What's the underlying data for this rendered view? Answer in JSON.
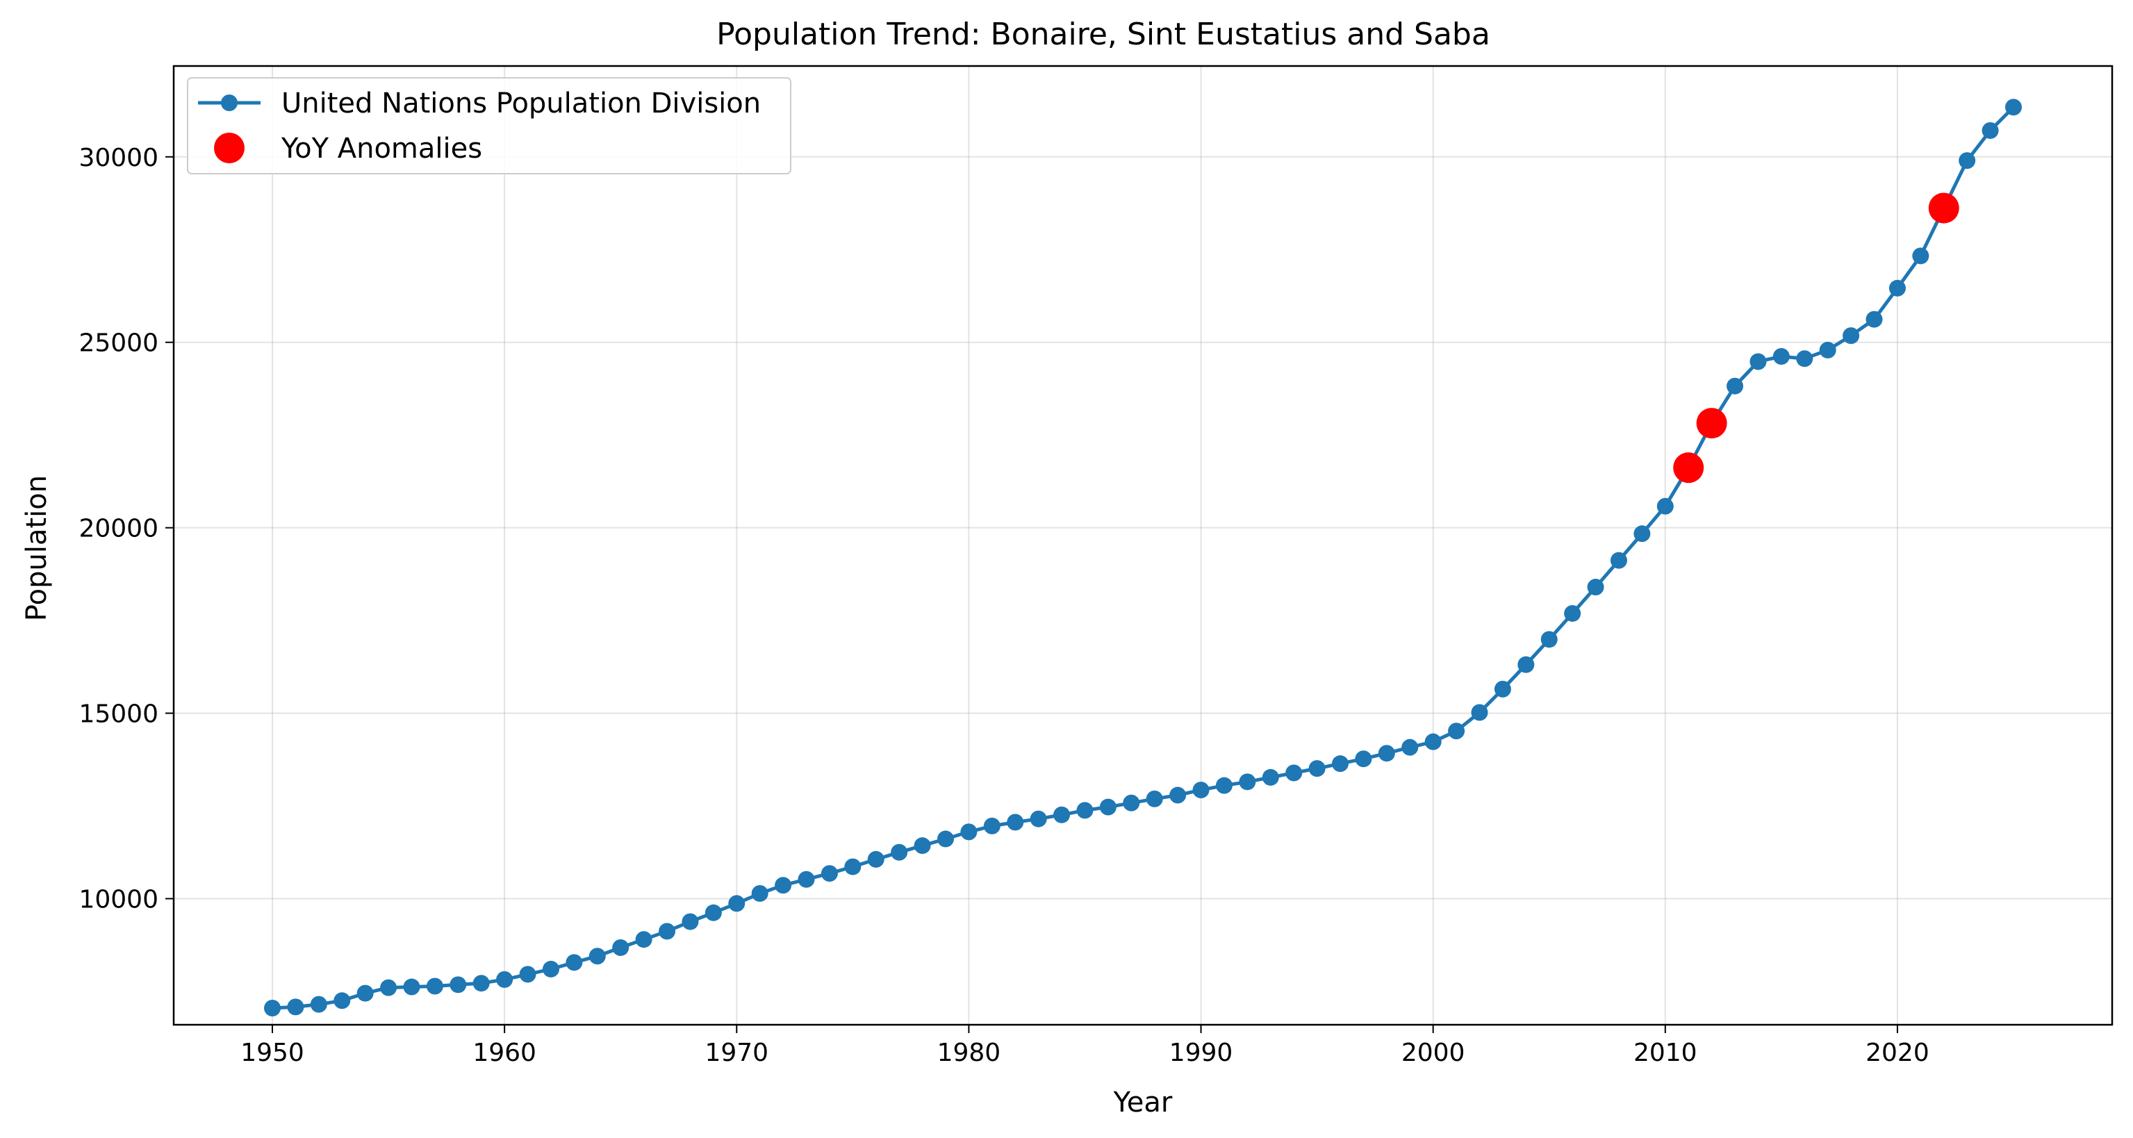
{
  "chart_data": {
    "type": "line",
    "title": "Population Trend: Bonaire, Sint Eustatius and Saba",
    "xlabel": "Year",
    "ylabel": "Population",
    "xlim": [
      1945.75,
      2029.25
    ],
    "ylim": [
      6600,
      32450
    ],
    "x_ticks": [
      1950,
      1960,
      1970,
      1980,
      1990,
      2000,
      2010,
      2020
    ],
    "y_ticks": [
      10000,
      15000,
      20000,
      25000,
      30000
    ],
    "grid": true,
    "legend_placement": "top-left",
    "series": [
      {
        "name": "United Nations Population Division",
        "color": "#1f77b4",
        "marker": "circle",
        "x": [
          1950,
          1951,
          1952,
          1953,
          1954,
          1955,
          1956,
          1957,
          1958,
          1959,
          1960,
          1961,
          1962,
          1963,
          1964,
          1965,
          1966,
          1967,
          1968,
          1969,
          1970,
          1971,
          1972,
          1973,
          1974,
          1975,
          1976,
          1977,
          1978,
          1979,
          1980,
          1981,
          1982,
          1983,
          1984,
          1985,
          1986,
          1987,
          1988,
          1989,
          1990,
          1991,
          1992,
          1993,
          1994,
          1995,
          1996,
          1997,
          1998,
          1999,
          2000,
          2001,
          2002,
          2003,
          2004,
          2005,
          2006,
          2007,
          2008,
          2009,
          2010,
          2011,
          2012,
          2013,
          2014,
          2015,
          2016,
          2017,
          2018,
          2019,
          2020,
          2021,
          2022,
          2023,
          2024,
          2025
        ],
        "y": [
          7050,
          7080,
          7150,
          7250,
          7450,
          7600,
          7620,
          7640,
          7680,
          7720,
          7820,
          7960,
          8100,
          8280,
          8450,
          8680,
          8900,
          9120,
          9380,
          9620,
          9870,
          10140,
          10360,
          10520,
          10680,
          10860,
          11060,
          11250,
          11430,
          11610,
          11800,
          11960,
          12060,
          12150,
          12260,
          12380,
          12470,
          12580,
          12690,
          12790,
          12930,
          13050,
          13150,
          13270,
          13390,
          13510,
          13640,
          13770,
          13920,
          14080,
          14230,
          14520,
          15020,
          15650,
          16310,
          16990,
          17690,
          18400,
          19120,
          19840,
          20580,
          21620,
          22820,
          23820,
          24480,
          24620,
          24560,
          24790,
          25180,
          25620,
          26460,
          27330,
          28620,
          29900,
          30710,
          31340
        ]
      },
      {
        "name": "YoY Anomalies",
        "color": "#ff0000",
        "marker": "circle",
        "x": [
          2011,
          2012,
          2022
        ],
        "y": [
          21620,
          22820,
          28620
        ]
      }
    ]
  }
}
